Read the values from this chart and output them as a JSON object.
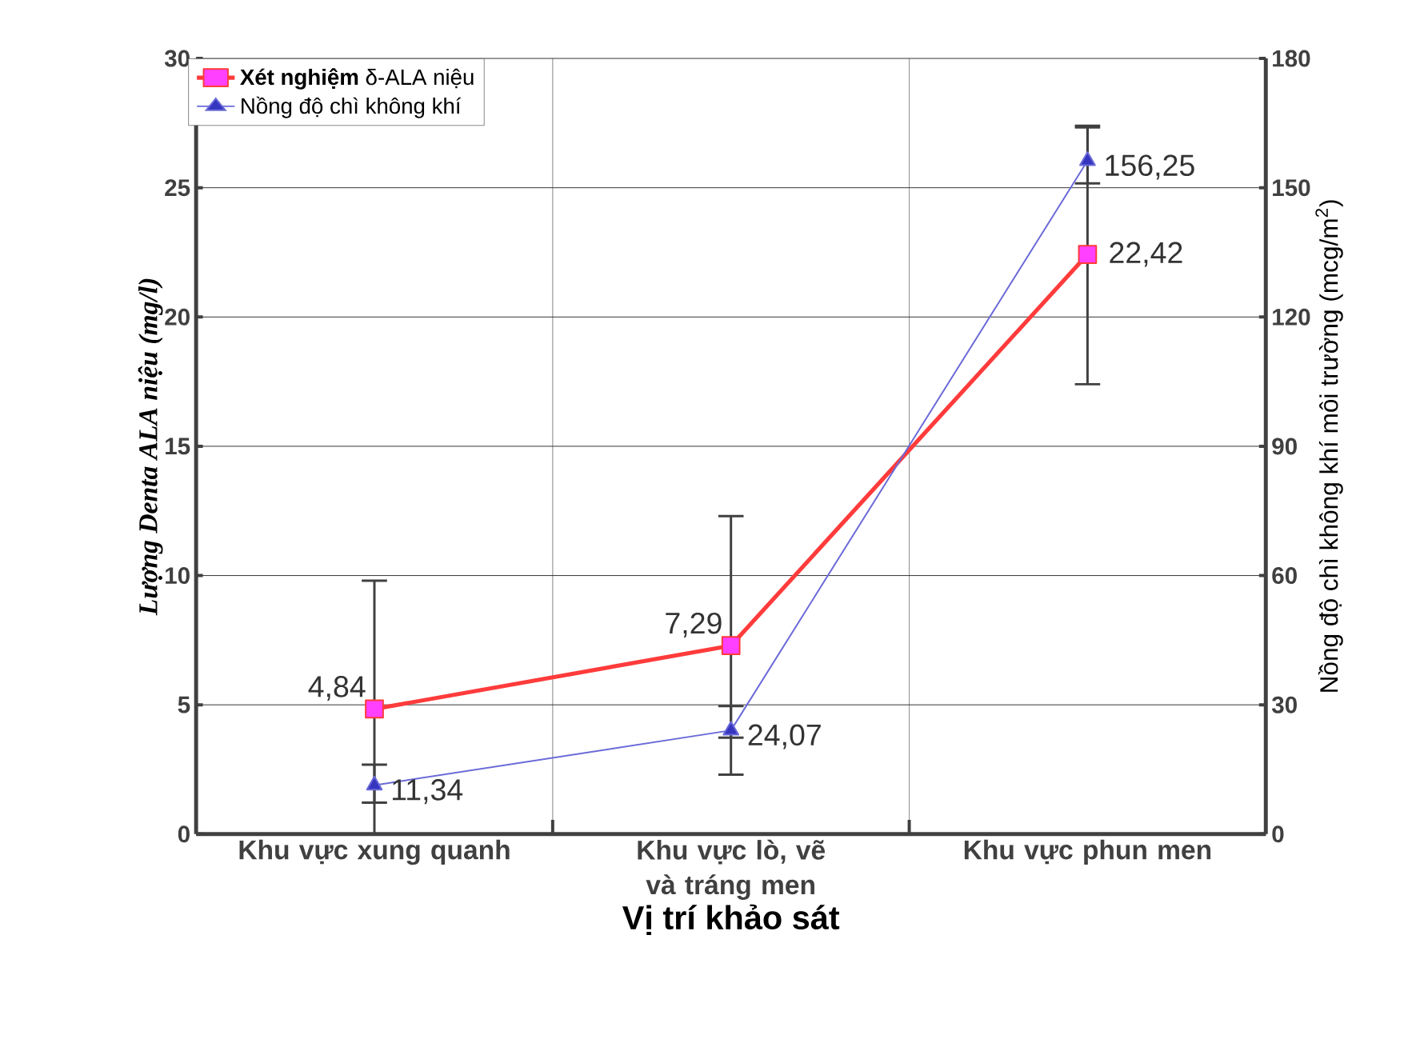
{
  "chart_data": {
    "type": "line",
    "xlabel": "Vị trí khảo sát",
    "ylabel": "Lượng Denta ALA niệu (mg/l)",
    "y2label": "Nồng độ chì không khí môi trường (mcg/m$^{2}$)",
    "categories": [
      "Khu vực xung quanh",
      "Khu vực lò, vẽ và tráng men",
      "Khu vực phun men"
    ],
    "series": [
      {
        "name": "**Xét nghiệm** δ-ALA niệu",
        "color": "#ff3b3b",
        "values": [
          4.84,
          7.29,
          22.42
        ],
        "errors": [
          [
            0,
            9.8
          ],
          [
            2.3,
            12.3
          ],
          [
            17.4,
            27.4
          ]
        ],
        "value_labels": [
          "4,84",
          "7,29",
          "22,42"
        ],
        "marker": "square",
        "line_style": "solid"
      },
      {
        "name": "Nồng độ chì không khí",
        "color": "#6a6ad8",
        "axis": "y2",
        "values": [
          11.34,
          24.07,
          156.25
        ],
        "errors": [
          [
            7.3,
            16.1
          ],
          [
            22.4,
            29.7
          ],
          [
            151,
            164
          ]
        ],
        "value_labels": [
          "11,34",
          "24,07",
          "156,25"
        ],
        "marker": "triangle",
        "line_style": "solid"
      }
    ],
    "ylim": [
      0,
      30
    ],
    "yticks": [
      0,
      5,
      10,
      15,
      20,
      25,
      30
    ],
    "y2lim": [
      0,
      180
    ],
    "y2ticks": [
      0,
      30,
      60,
      90,
      120,
      150,
      180
    ],
    "grid": true,
    "legend": "top left"
  }
}
